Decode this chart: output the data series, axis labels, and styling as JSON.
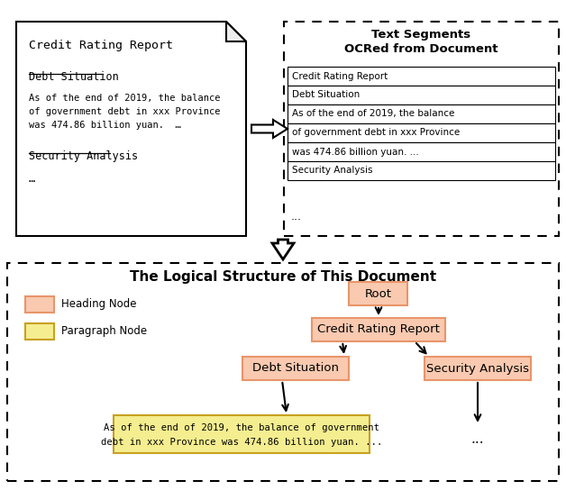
{
  "fig_width": 6.28,
  "fig_height": 5.44,
  "bg_color": "#ffffff",
  "heading_node_color": "#E8956A",
  "heading_node_fill": "#F9C9B0",
  "paragraph_node_color": "#C8A020",
  "paragraph_node_fill": "#F5EE90",
  "title_bottom": "The Logical Structure of This Document",
  "doc_title": "Credit Rating Report",
  "doc_heading1": "Debt Situation",
  "doc_body1": "As of the end of 2019, the balance",
  "doc_body2": "of government debt in xxx Province",
  "doc_body3": "was 474.86 billion yuan.  …",
  "doc_heading2": "Security Analysis",
  "doc_dots": "…",
  "seg_title_line1": "Text Segments",
  "seg_title_line2": "OCRed from Document",
  "seg_rows": [
    "Credit Rating Report",
    "Debt Situation",
    "As of the end of 2019, the balance",
    "of government debt in xxx Province",
    "was 474.86 billion yuan. ...",
    "Security Analysis"
  ],
  "seg_dots": "...",
  "tree_root": "Root",
  "tree_crr": "Credit Rating Report",
  "tree_ds": "Debt Situation",
  "tree_sa": "Security Analysis",
  "tree_para_line1": "As of the end of 2019, the balance of government",
  "tree_para_line2": "debt in xxx Province was 474.86 billion yuan. ...",
  "tree_dots": "...",
  "legend_heading": "Heading Node",
  "legend_para": "Paragraph Node"
}
